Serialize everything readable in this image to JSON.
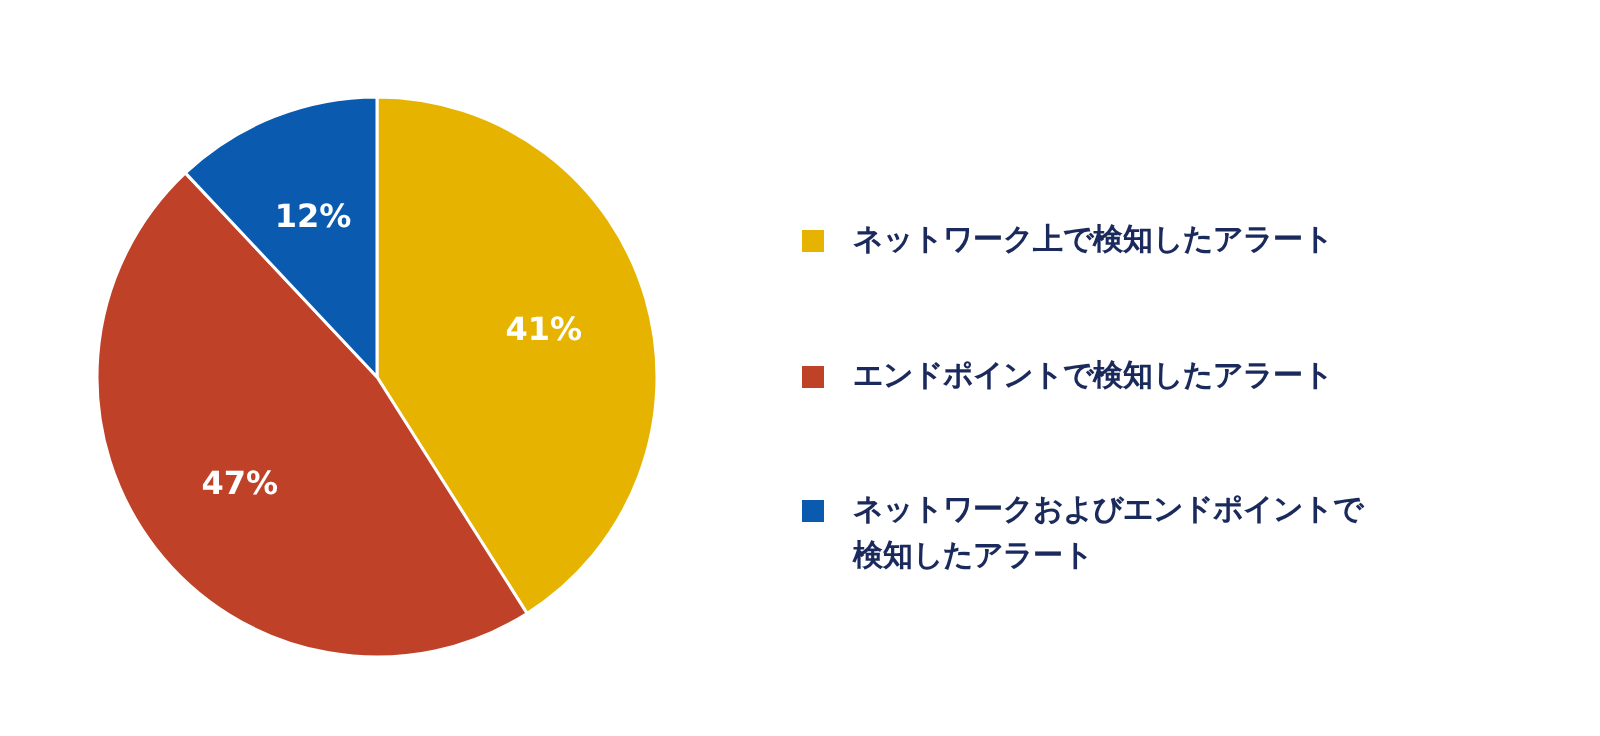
{
  "chart_data": {
    "type": "pie",
    "categories": [
      "ネットワーク上で検知したアラート",
      "エンドポイントで検知したアラート",
      "ネットワークおよびエンドポイントで検知したアラート"
    ],
    "values": [
      41,
      47,
      12
    ],
    "colors": [
      "#e6b400",
      "#bf4128",
      "#0a5aaf"
    ],
    "value_labels": [
      "41%",
      "47%",
      "12%"
    ],
    "legend": "right"
  }
}
